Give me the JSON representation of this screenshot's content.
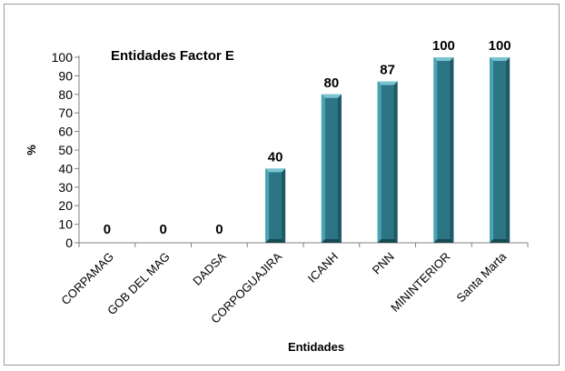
{
  "chart_data": {
    "type": "bar",
    "title": "Entidades Factor E",
    "xlabel": "Entidades",
    "ylabel": "%",
    "ylim": [
      0,
      100
    ],
    "yticks": [
      0,
      10,
      20,
      30,
      40,
      50,
      60,
      70,
      80,
      90,
      100
    ],
    "categories": [
      "CORPAMAG",
      "GOB DEL MAG",
      "DADSA",
      "CORPOGUAJIRA",
      "ICANH",
      "PNN",
      "MININTERIOR",
      "Santa Marta"
    ],
    "values": [
      0,
      0,
      0,
      40,
      80,
      87,
      100,
      100
    ],
    "data_labels": [
      "0",
      "0",
      "0",
      "40",
      "80",
      "87",
      "100",
      "100"
    ],
    "grid": false,
    "legend": "none",
    "bar_colors": {
      "front": "#2b7585",
      "left": "#4aa3b3",
      "right": "#1f5866",
      "top": "#79c4d1"
    }
  }
}
